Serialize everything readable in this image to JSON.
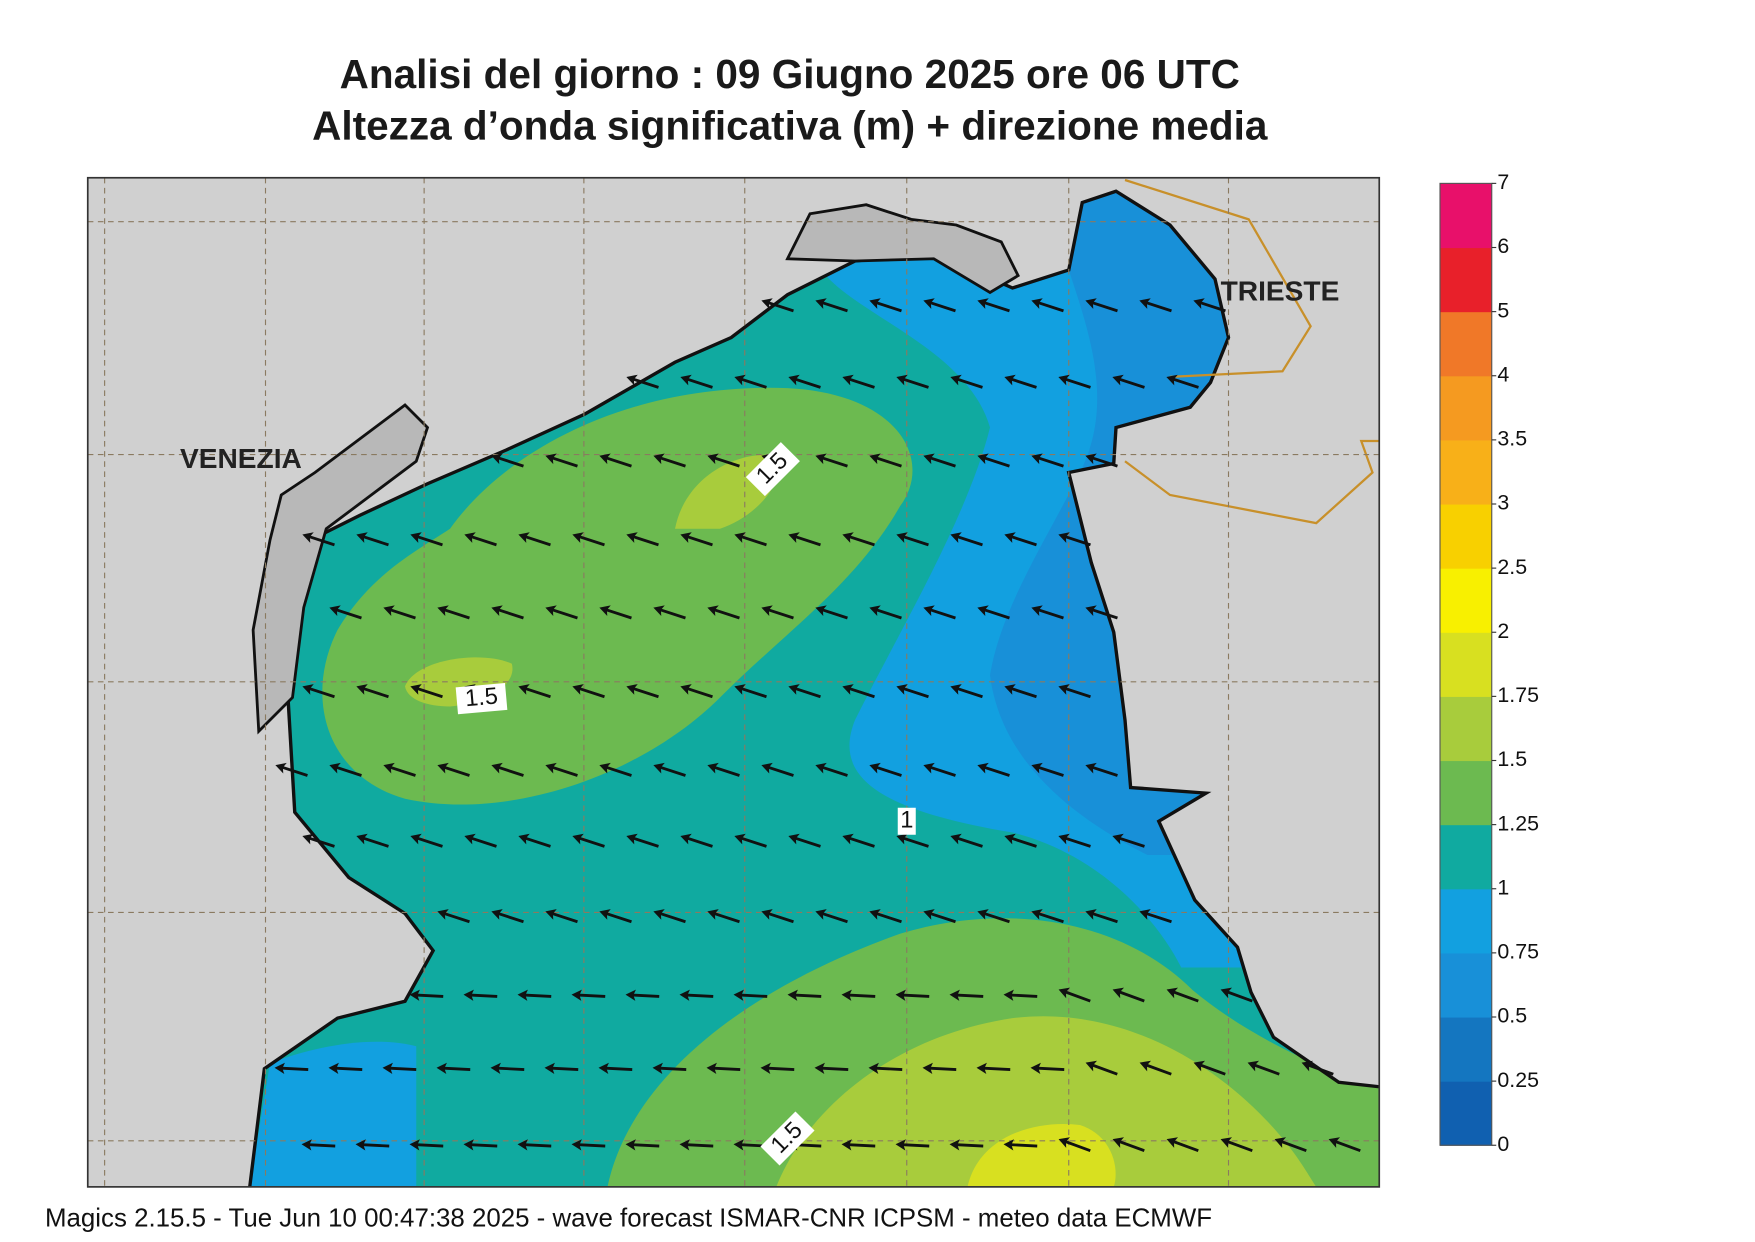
{
  "header": {
    "title": "Analisi del giorno :  09   Giugno  2025   ore 06 UTC",
    "subtitle": "Altezza d’onda significativa (m) + direzione media"
  },
  "map": {
    "cities": [
      "VENEZIA",
      "TRIESTE"
    ],
    "contour_labels": [
      "1.5",
      "1.5",
      "1",
      "1.5"
    ]
  },
  "legend": {
    "levels": [
      0,
      0.25,
      0.5,
      0.75,
      1,
      1.25,
      1.5,
      1.75,
      2,
      2.5,
      3,
      3.5,
      4,
      5,
      6,
      7
    ],
    "colors": [
      "#1060b0",
      "#1476c0",
      "#1890d8",
      "#12a0e0",
      "#10aaa0",
      "#6cba50",
      "#a8cc3c",
      "#d8e020",
      "#f8f000",
      "#f8d000",
      "#f8b018",
      "#f59a20",
      "#f07828",
      "#e8202a",
      "#e8106a"
    ]
  },
  "footer": "Magics 2.15.5 - Tue Jun 10 00:47:38 2025 - wave forecast  ISMAR-CNR  ICPSM - meteo data    ECMWF"
}
